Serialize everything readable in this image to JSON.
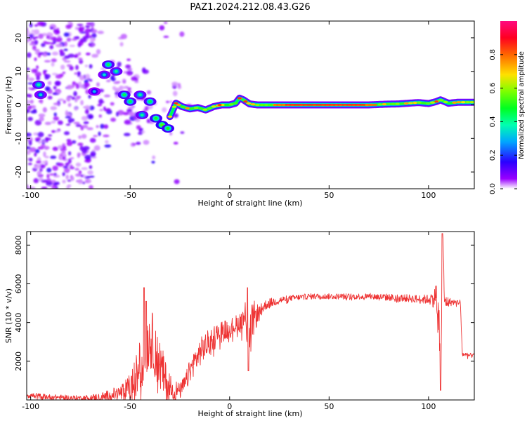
{
  "title": "PAZ1.2024.212.08.43.G26",
  "chart_data": [
    {
      "type": "heatmap",
      "xlabel": "Height of straight line (km)",
      "ylabel": "Frequency (Hz)",
      "xlim": [
        -102,
        123
      ],
      "ylim": [
        -25,
        25
      ],
      "xticks": [
        -100,
        -50,
        0,
        50,
        100
      ],
      "yticks": [
        -20,
        -10,
        0,
        10,
        20
      ],
      "colorbar": {
        "label": "Normalized spectral amplitude",
        "range": [
          0,
          1
        ],
        "ticks": [
          0.0,
          0.2,
          0.4,
          0.6,
          0.8
        ],
        "colormap": "gist_rainbow_r"
      },
      "ridge": {
        "x": [
          -30,
          -27,
          -24,
          -20,
          -16,
          -12,
          -8,
          -4,
          0,
          3,
          5,
          7,
          10,
          14,
          18,
          22,
          30,
          40,
          50,
          60,
          70,
          78,
          85,
          90,
          95,
          100,
          104,
          106,
          110,
          115,
          123
        ],
        "y": [
          -3.5,
          0.5,
          -0.5,
          -1.2,
          -0.8,
          -1.5,
          -0.5,
          0,
          0,
          0.5,
          2.0,
          1.5,
          0.3,
          0,
          0,
          0,
          0,
          0,
          0,
          0,
          0,
          0.2,
          0.3,
          0.5,
          0.7,
          0.4,
          1.0,
          1.5,
          0.5,
          0.8,
          0.8
        ]
      },
      "blobs": [
        {
          "x": -95,
          "y": 3,
          "v": 0.2
        },
        {
          "x": -96,
          "y": 6,
          "v": 0.25
        },
        {
          "x": -68,
          "y": 4,
          "v": 0.15
        },
        {
          "x": -63,
          "y": 9,
          "v": 0.2
        },
        {
          "x": -61,
          "y": 12,
          "v": 0.3
        },
        {
          "x": -57,
          "y": 10,
          "v": 0.25
        },
        {
          "x": -53,
          "y": 3,
          "v": 0.3
        },
        {
          "x": -50,
          "y": 1,
          "v": 0.3
        },
        {
          "x": -45,
          "y": 3,
          "v": 0.25
        },
        {
          "x": -44,
          "y": -3,
          "v": 0.25
        },
        {
          "x": -40,
          "y": 1,
          "v": 0.3
        },
        {
          "x": -37,
          "y": -4,
          "v": 0.35
        },
        {
          "x": -34,
          "y": -6,
          "v": 0.4
        },
        {
          "x": -31,
          "y": -7,
          "v": 0.35
        }
      ],
      "hot_spots": [
        {
          "x": -27,
          "y": 0.5
        },
        {
          "x": -5,
          "y": 0
        },
        {
          "x": 5,
          "y": 2
        },
        {
          "x": 8,
          "y": 1
        },
        {
          "x": 104,
          "y": 1
        }
      ],
      "red_core_x": [
        22,
        74
      ]
    },
    {
      "type": "line",
      "xlabel": "Height of straight line (km)",
      "ylabel": "SNR (10 * v/v)",
      "xlim": [
        -102,
        123
      ],
      "ylim": [
        0,
        8700
      ],
      "xticks": [
        -100,
        -50,
        0,
        50,
        100
      ],
      "yticks": [
        2000,
        4000,
        6000,
        8000
      ],
      "color": "#ee3333",
      "envelope": {
        "x": [
          -102,
          -90,
          -75,
          -65,
          -58,
          -55,
          -52,
          -50,
          -48,
          -45,
          -42,
          -40,
          -38,
          -35,
          -32,
          -28,
          -25,
          -22,
          -20,
          -17,
          -14,
          -10,
          -5,
          0,
          5,
          8,
          10,
          12,
          15,
          18,
          20,
          25,
          30,
          35,
          40,
          50,
          60,
          70,
          80,
          90,
          95,
          100,
          103,
          104,
          105,
          106,
          107,
          108,
          110,
          115,
          116,
          117,
          118,
          120,
          123
        ],
        "y": [
          250,
          150,
          100,
          120,
          300,
          350,
          450,
          600,
          900,
          1800,
          2800,
          3200,
          2800,
          1800,
          900,
          500,
          450,
          900,
          1500,
          2100,
          2600,
          3000,
          3500,
          3700,
          4000,
          4300,
          3300,
          4200,
          4600,
          4900,
          5000,
          5150,
          5250,
          5300,
          5350,
          5350,
          5350,
          5350,
          5300,
          5250,
          5200,
          5200,
          5250,
          5800,
          3800,
          700,
          8500,
          5100,
          5050,
          5050,
          5050,
          2350,
          2350,
          2300,
          2300
        ]
      },
      "noise": {
        "x": [
          -102,
          -75,
          -60,
          -55,
          -50,
          -45,
          -40,
          -35,
          -30,
          -25,
          -20,
          -15,
          -10,
          -5,
          0,
          5,
          10,
          15,
          20,
          30,
          60,
          90,
          100,
          104,
          106,
          108,
          112,
          116,
          117,
          123
        ],
        "y": [
          150,
          120,
          300,
          400,
          800,
          1400,
          1600,
          1400,
          800,
          400,
          600,
          700,
          700,
          600,
          500,
          500,
          1400,
          300,
          250,
          150,
          150,
          200,
          250,
          600,
          2500,
          400,
          150,
          150,
          120,
          120
        ]
      },
      "spikes": [
        {
          "x": -43,
          "y": 5800
        },
        {
          "x": -42,
          "y": 5100
        },
        {
          "x": 9,
          "y": 5800
        },
        {
          "x": 9.5,
          "y": 1500
        },
        {
          "x": 106,
          "y": 500
        },
        {
          "x": 107,
          "y": 8600
        }
      ]
    }
  ]
}
